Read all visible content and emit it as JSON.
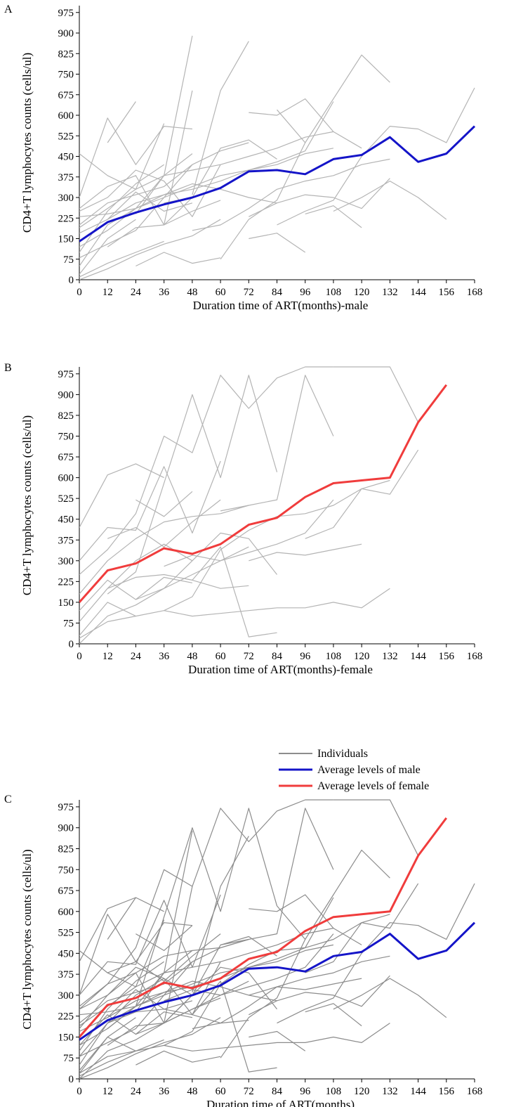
{
  "panels": [
    {
      "id": "A",
      "letter": "A",
      "xlabel": "Duration time of ART(months)-male",
      "ylabel": "CD4+T lymphocytes counts (cells/ul)",
      "x_ticks": [
        "0",
        "12",
        "24",
        "36",
        "48",
        "60",
        "72",
        "84",
        "96",
        "108",
        "120",
        "132",
        "144",
        "156",
        "168"
      ],
      "y_ticks": [
        "0",
        "75",
        "150",
        "225",
        "300",
        "375",
        "450",
        "525",
        "600",
        "675",
        "750",
        "825",
        "900",
        "975"
      ]
    },
    {
      "id": "B",
      "letter": "B",
      "xlabel": "Duration time of ART(months)-female",
      "ylabel": "CD4+T lymphocytes counts (cells/ul)",
      "x_ticks": [
        "0",
        "12",
        "24",
        "36",
        "48",
        "60",
        "72",
        "84",
        "96",
        "108",
        "120",
        "132",
        "144",
        "156",
        "168"
      ],
      "y_ticks": [
        "0",
        "75",
        "150",
        "225",
        "300",
        "375",
        "450",
        "525",
        "600",
        "675",
        "750",
        "825",
        "900",
        "975"
      ]
    },
    {
      "id": "C",
      "letter": "C",
      "xlabel": "Duration time of ART(months)",
      "ylabel": "CD4+T lymphocytes counts (cells/ul)",
      "x_ticks": [
        "0",
        "12",
        "24",
        "36",
        "48",
        "60",
        "72",
        "84",
        "96",
        "108",
        "120",
        "132",
        "144",
        "156",
        "168"
      ],
      "y_ticks": [
        "0",
        "75",
        "150",
        "225",
        "300",
        "375",
        "450",
        "525",
        "600",
        "675",
        "750",
        "825",
        "900",
        "975"
      ]
    }
  ],
  "legend": {
    "items": [
      {
        "label": "Individuals",
        "color": "#8c8c8c"
      },
      {
        "label": "Average levels of male",
        "color": "#1414c8"
      },
      {
        "label": "Average levels of female",
        "color": "#f03c3c"
      }
    ]
  },
  "chart_data": [
    {
      "type": "line",
      "panel": "A",
      "xlim": [
        0,
        168
      ],
      "ylim": [
        0,
        1000
      ],
      "series": [
        {
          "name": "Average levels of male",
          "x": [
            0,
            12,
            24,
            36,
            48,
            60,
            72,
            84,
            96,
            108,
            120,
            132,
            144,
            156,
            168
          ],
          "values": [
            140,
            210,
            245,
            275,
            300,
            335,
            395,
            400,
            385,
            440,
            455,
            520,
            430,
            460,
            560
          ]
        },
        {
          "x": [
            0,
            12,
            24,
            36,
            48
          ],
          "values": [
            300,
            590,
            420,
            560,
            550
          ]
        },
        {
          "x": [
            12,
            24
          ],
          "values": [
            500,
            650
          ]
        },
        {
          "x": [
            0,
            12,
            24,
            36
          ],
          "values": [
            460,
            380,
            330,
            570
          ]
        },
        {
          "x": [
            0,
            12,
            24,
            36,
            48,
            60
          ],
          "values": [
            250,
            300,
            400,
            360,
            230,
            420
          ]
        },
        {
          "x": [
            0,
            12,
            24,
            36,
            48,
            60,
            72
          ],
          "values": [
            200,
            280,
            310,
            340,
            420,
            470,
            500
          ]
        },
        {
          "x": [
            0,
            12,
            24,
            36
          ],
          "values": [
            100,
            250,
            350,
            420
          ]
        },
        {
          "x": [
            0,
            12,
            24,
            36,
            48
          ],
          "values": [
            50,
            200,
            260,
            380,
            460
          ]
        },
        {
          "x": [
            0,
            12,
            24
          ],
          "values": [
            20,
            150,
            220
          ]
        },
        {
          "x": [
            0,
            12,
            24,
            36,
            48
          ],
          "values": [
            170,
            220,
            320,
            250,
            280
          ]
        },
        {
          "x": [
            0,
            12,
            24,
            36,
            48
          ],
          "values": [
            260,
            340,
            380,
            200,
            300
          ]
        },
        {
          "x": [
            0,
            12,
            24,
            36,
            48
          ],
          "values": [
            80,
            130,
            180,
            300,
            420
          ]
        },
        {
          "x": [
            0,
            12,
            24,
            36
          ],
          "values": [
            10,
            60,
            100,
            140
          ]
        },
        {
          "x": [
            0,
            12,
            24,
            36,
            48,
            60,
            72,
            84
          ],
          "values": [
            120,
            180,
            260,
            310,
            350,
            330,
            300,
            280
          ]
        },
        {
          "x": [
            0,
            12,
            24,
            36,
            48,
            60,
            72,
            84,
            96,
            108
          ],
          "values": [
            190,
            260,
            330,
            380,
            400,
            420,
            450,
            480,
            520,
            540
          ]
        },
        {
          "x": [
            12,
            24,
            36,
            48,
            60,
            72,
            84,
            96,
            108
          ],
          "values": [
            220,
            280,
            310,
            330,
            360,
            400,
            420,
            460,
            480
          ]
        },
        {
          "x": [
            24,
            36,
            48
          ],
          "values": [
            240,
            380,
            890
          ]
        },
        {
          "x": [
            36,
            48
          ],
          "values": [
            200,
            690
          ]
        },
        {
          "x": [
            48,
            60,
            72
          ],
          "values": [
            310,
            690,
            870
          ]
        },
        {
          "x": [
            36,
            48,
            60,
            72,
            84
          ],
          "values": [
            280,
            300,
            480,
            510,
            440
          ]
        },
        {
          "x": [
            48,
            60,
            72,
            84,
            96,
            108,
            120,
            132
          ],
          "values": [
            180,
            200,
            260,
            330,
            360,
            380,
            420,
            440
          ]
        },
        {
          "x": [
            60,
            72,
            84,
            96
          ],
          "values": [
            75,
            220,
            290,
            500
          ]
        },
        {
          "x": [
            72,
            84,
            96,
            108,
            120,
            132
          ],
          "values": [
            230,
            280,
            310,
            300,
            260,
            370
          ]
        },
        {
          "x": [
            72,
            84,
            96
          ],
          "values": [
            150,
            170,
            100
          ]
        },
        {
          "x": [
            72,
            84,
            96,
            108,
            120
          ],
          "values": [
            610,
            600,
            660,
            540,
            480
          ]
        },
        {
          "x": [
            84,
            96,
            108,
            120,
            132
          ],
          "values": [
            620,
            500,
            660,
            820,
            720
          ]
        },
        {
          "x": [
            84,
            96,
            108,
            120,
            132,
            144,
            156,
            168
          ],
          "values": [
            200,
            250,
            290,
            450,
            560,
            550,
            500,
            700
          ]
        },
        {
          "x": [
            96,
            108,
            120
          ],
          "values": [
            240,
            270,
            190
          ]
        },
        {
          "x": [
            108,
            120,
            132,
            144,
            156
          ],
          "values": [
            250,
            300,
            360,
            300,
            220
          ]
        },
        {
          "x": [
            0,
            12,
            24,
            36,
            48,
            60
          ],
          "values": [
            0,
            40,
            90,
            130,
            160,
            220
          ]
        },
        {
          "x": [
            0,
            12,
            24,
            36,
            48,
            60,
            72,
            84,
            96,
            108
          ],
          "values": [
            230,
            240,
            260,
            300,
            340,
            380,
            400,
            430,
            470,
            650
          ]
        },
        {
          "x": [
            12,
            24,
            36,
            48,
            60
          ],
          "values": [
            120,
            190,
            200,
            250,
            290
          ]
        },
        {
          "x": [
            24,
            36,
            48,
            60
          ],
          "values": [
            50,
            100,
            60,
            80
          ]
        }
      ]
    },
    {
      "type": "line",
      "panel": "B",
      "xlim": [
        0,
        168
      ],
      "ylim": [
        0,
        1000
      ],
      "series": [
        {
          "name": "Average levels of female",
          "x": [
            0,
            12,
            24,
            36,
            48,
            60,
            72,
            84,
            96,
            108,
            120,
            132,
            144,
            156
          ],
          "values": [
            150,
            265,
            290,
            345,
            325,
            360,
            430,
            455,
            530,
            580,
            590,
            600,
            800,
            935
          ]
        },
        {
          "x": [
            0,
            12,
            24,
            36
          ],
          "values": [
            420,
            610,
            650,
            600
          ]
        },
        {
          "x": [
            0,
            12,
            24,
            36,
            48,
            60,
            72,
            84,
            96,
            108
          ],
          "values": [
            250,
            340,
            470,
            750,
            690,
            970,
            850,
            960,
            1000,
            1000
          ]
        },
        {
          "x": [
            0,
            12,
            24,
            36,
            48,
            60
          ],
          "values": [
            300,
            420,
            410,
            640,
            400,
            660
          ]
        },
        {
          "x": [
            12,
            24,
            36,
            48,
            60,
            72,
            84
          ],
          "values": [
            180,
            260,
            580,
            900,
            600,
            970,
            620
          ]
        },
        {
          "x": [
            0,
            12,
            24,
            36,
            48,
            60,
            72
          ],
          "values": [
            180,
            300,
            380,
            440,
            460,
            470,
            500
          ]
        },
        {
          "x": [
            0,
            12,
            24,
            36,
            48
          ],
          "values": [
            80,
            200,
            300,
            360,
            300
          ]
        },
        {
          "x": [
            0,
            12,
            24,
            36,
            48,
            60,
            72
          ],
          "values": [
            0,
            100,
            140,
            200,
            250,
            300,
            350
          ]
        },
        {
          "x": [
            0,
            12,
            24
          ],
          "values": [
            30,
            150,
            100
          ]
        },
        {
          "x": [
            0,
            12,
            24,
            36,
            48,
            60,
            72,
            84,
            96,
            108,
            120,
            132
          ],
          "values": [
            20,
            80,
            100,
            120,
            100,
            110,
            120,
            130,
            130,
            150,
            130,
            200
          ]
        },
        {
          "x": [
            12,
            24,
            36,
            48,
            60,
            72
          ],
          "values": [
            200,
            240,
            250,
            230,
            200,
            210
          ]
        },
        {
          "x": [
            24,
            36,
            48,
            60,
            72,
            84
          ],
          "values": [
            160,
            200,
            300,
            400,
            380,
            250
          ]
        },
        {
          "x": [
            36,
            48,
            60,
            72,
            84
          ],
          "values": [
            120,
            170,
            340,
            410,
            460
          ]
        },
        {
          "x": [
            48,
            60,
            72,
            84
          ],
          "values": [
            230,
            350,
            25,
            40
          ]
        },
        {
          "x": [
            60,
            72,
            84,
            96,
            108
          ],
          "values": [
            480,
            500,
            520,
            970,
            750
          ]
        },
        {
          "x": [
            72,
            84,
            96,
            108,
            120
          ],
          "values": [
            300,
            330,
            320,
            340,
            360
          ]
        },
        {
          "x": [
            84,
            96,
            108,
            120,
            132
          ],
          "values": [
            460,
            470,
            500,
            560,
            590
          ]
        },
        {
          "x": [
            96,
            108,
            120,
            132,
            144
          ],
          "values": [
            380,
            420,
            560,
            540,
            700
          ]
        },
        {
          "x": [
            108,
            120,
            132,
            144
          ],
          "values": [
            1000,
            1000,
            1000,
            800
          ]
        },
        {
          "x": [
            12,
            24,
            36,
            48,
            60
          ],
          "values": [
            380,
            420,
            350,
            440,
            520
          ]
        },
        {
          "x": [
            0,
            12,
            24,
            36,
            48
          ],
          "values": [
            120,
            230,
            160,
            240,
            220
          ]
        },
        {
          "x": [
            36,
            48,
            60,
            72,
            84,
            96,
            108
          ],
          "values": [
            280,
            320,
            300,
            330,
            360,
            400,
            520
          ]
        },
        {
          "x": [
            24,
            36,
            48
          ],
          "values": [
            520,
            460,
            550
          ]
        }
      ]
    },
    {
      "type": "line",
      "panel": "C",
      "xlim": [
        0,
        168
      ],
      "ylim": [
        0,
        1000
      ],
      "series": [
        {
          "name": "Average levels of male",
          "x": [
            0,
            12,
            24,
            36,
            48,
            60,
            72,
            84,
            96,
            108,
            120,
            132,
            144,
            156,
            168
          ],
          "values": [
            140,
            210,
            245,
            275,
            300,
            335,
            395,
            400,
            385,
            440,
            455,
            520,
            430,
            460,
            560
          ]
        },
        {
          "name": "Average levels of female",
          "x": [
            0,
            12,
            24,
            36,
            48,
            60,
            72,
            84,
            96,
            108,
            120,
            132,
            144,
            156
          ],
          "values": [
            150,
            265,
            290,
            345,
            325,
            360,
            430,
            455,
            530,
            580,
            590,
            600,
            800,
            935
          ]
        }
      ]
    }
  ]
}
